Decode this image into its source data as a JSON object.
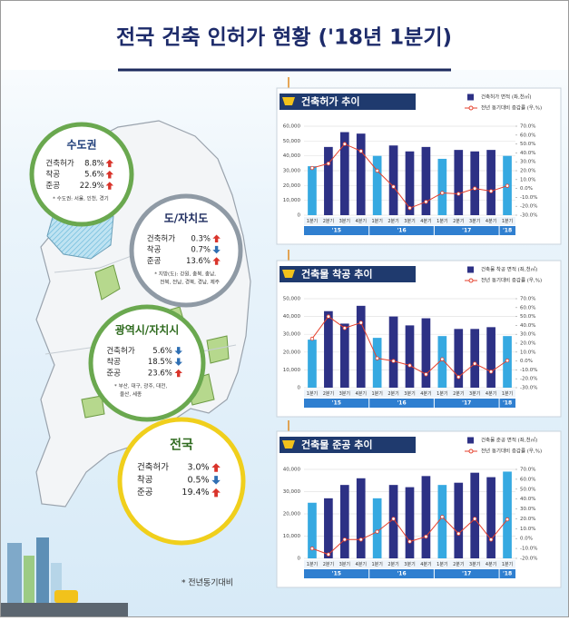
{
  "header": {
    "title": "전국 건축 인허가 현황 ('18년 1분기)"
  },
  "regions": [
    {
      "name": "수도권",
      "rows": [
        {
          "label": "건축허가",
          "value": "8.8%",
          "trend": "up"
        },
        {
          "label": "착공",
          "value": "5.6%",
          "trend": "up"
        },
        {
          "label": "준공",
          "value": "22.9%",
          "trend": "up"
        }
      ],
      "note": [
        "* 수도권: 서울, 인천, 경기"
      ]
    },
    {
      "name": "도/자치도",
      "rows": [
        {
          "label": "건축허가",
          "value": "0.3%",
          "trend": "up"
        },
        {
          "label": "착공",
          "value": "0.7%",
          "trend": "down"
        },
        {
          "label": "준공",
          "value": "13.6%",
          "trend": "up"
        }
      ],
      "note": [
        "* 지방(도): 강원, 충북, 충남,",
        "전북, 전남, 경북, 경남, 제주"
      ]
    },
    {
      "name": "광역시/자치시",
      "rows": [
        {
          "label": "건축허가",
          "value": "5.6%",
          "trend": "down"
        },
        {
          "label": "착공",
          "value": "18.5%",
          "trend": "down"
        },
        {
          "label": "준공",
          "value": "23.6%",
          "trend": "up"
        }
      ],
      "note": [
        "* 부산, 대구, 광주, 대전,",
        "울산, 세종"
      ]
    },
    {
      "name": "전국",
      "rows": [
        {
          "label": "건축허가",
          "value": "3.0%",
          "trend": "up"
        },
        {
          "label": "착공",
          "value": "0.5%",
          "trend": "down"
        },
        {
          "label": "준공",
          "value": "19.4%",
          "trend": "up"
        }
      ],
      "note": []
    }
  ],
  "footnote": "* 전년동기대비",
  "chart_data": [
    {
      "type": "bar",
      "title": "건축허가 추이",
      "categories": [
        "1분기",
        "2분기",
        "3분기",
        "4분기",
        "1분기",
        "2분기",
        "3분기",
        "4분기",
        "1분기",
        "2분기",
        "3분기",
        "4분기",
        "1분기"
      ],
      "groups": [
        "'15",
        "'16",
        "'17",
        "'18"
      ],
      "series": [
        {
          "name": "건축허가 면적 (좌,천㎡)",
          "type": "bar",
          "color": "#2d3185",
          "colors": [
            "#36a9e1",
            "#2d3185",
            "#2d3185",
            "#2d3185",
            "#36a9e1",
            "#2d3185",
            "#2d3185",
            "#2d3185",
            "#36a9e1",
            "#2d3185",
            "#2d3185",
            "#2d3185",
            "#36a9e1"
          ],
          "values": [
            33000,
            46000,
            56000,
            55000,
            40000,
            47000,
            43000,
            46000,
            38000,
            44000,
            43000,
            44000,
            40000
          ]
        },
        {
          "name": "전년 동기대비 증감률 (우,%)",
          "type": "line",
          "axis": "y2",
          "color": "#e5412d",
          "values": [
            23,
            28,
            50,
            42,
            20,
            2,
            -22,
            -15,
            -5,
            -6,
            0,
            -3,
            3
          ]
        }
      ],
      "ylim": [
        0,
        60000
      ],
      "yticks": [
        0,
        {
          "value": 10000,
          "label": "10,000"
        },
        {
          "value": 20000,
          "label": "20,000"
        },
        {
          "value": 30000,
          "label": "30,000"
        },
        {
          "value": 40000,
          "label": "40,000"
        },
        {
          "value": 50000,
          "label": "50,000"
        },
        {
          "value": 60000,
          "label": "60,000"
        }
      ],
      "y2lim": [
        -30,
        70
      ],
      "y2ticks": [
        {
          "value": 70,
          "label": "70.0%"
        },
        {
          "value": 60,
          "label": "60.0%"
        },
        {
          "value": 50,
          "label": "50.0%"
        },
        {
          "value": 40,
          "label": "40.0%"
        },
        {
          "value": 30,
          "label": "30.0%"
        },
        {
          "value": 20,
          "label": "20.0%"
        },
        {
          "value": 10,
          "label": "10.0%"
        },
        {
          "value": 0,
          "label": "0.0%"
        },
        {
          "value": -10,
          "label": "-10.0%"
        },
        {
          "value": -20,
          "label": "-20.0%"
        },
        {
          "value": -30,
          "label": "-30.0%"
        }
      ],
      "grid": true
    },
    {
      "type": "bar",
      "title": "건축물 착공 추이",
      "categories": [
        "1분기",
        "2분기",
        "3분기",
        "4분기",
        "1분기",
        "2분기",
        "3분기",
        "4분기",
        "1분기",
        "2분기",
        "3분기",
        "4분기",
        "1분기"
      ],
      "groups": [
        "'15",
        "'16",
        "'17",
        "'18"
      ],
      "series": [
        {
          "name": "건축물 착공 면적 (좌,천㎡)",
          "type": "bar",
          "color": "#2d3185",
          "colors": [
            "#36a9e1",
            "#2d3185",
            "#2d3185",
            "#2d3185",
            "#36a9e1",
            "#2d3185",
            "#2d3185",
            "#2d3185",
            "#36a9e1",
            "#2d3185",
            "#2d3185",
            "#2d3185",
            "#36a9e1"
          ],
          "values": [
            27000,
            43000,
            36000,
            46000,
            28000,
            40000,
            35000,
            39000,
            29000,
            33000,
            33000,
            34000,
            29000
          ]
        },
        {
          "name": "전년 동기대비 증감률 (우,%)",
          "type": "line",
          "axis": "y2",
          "color": "#e5412d",
          "values": [
            25,
            50,
            37,
            43,
            3,
            0,
            -5,
            -15,
            2,
            -18,
            -3,
            -12,
            0.5
          ]
        }
      ],
      "ylim": [
        0,
        50000
      ],
      "yticks": [
        0,
        {
          "value": 10000,
          "label": "10,000"
        },
        {
          "value": 20000,
          "label": "20,000"
        },
        {
          "value": 30000,
          "label": "30,000"
        },
        {
          "value": 40000,
          "label": "40,000"
        },
        {
          "value": 50000,
          "label": "50,000"
        }
      ],
      "y2lim": [
        -30,
        70
      ],
      "y2ticks": [
        {
          "value": 70,
          "label": "70.0%"
        },
        {
          "value": 60,
          "label": "60.0%"
        },
        {
          "value": 50,
          "label": "50.0%"
        },
        {
          "value": 40,
          "label": "40.0%"
        },
        {
          "value": 30,
          "label": "30.0%"
        },
        {
          "value": 20,
          "label": "20.0%"
        },
        {
          "value": 10,
          "label": "10.0%"
        },
        {
          "value": 0,
          "label": "0.0%"
        },
        {
          "value": -10,
          "label": "-10.0%"
        },
        {
          "value": -20,
          "label": "-20.0%"
        },
        {
          "value": -30,
          "label": "-30.0%"
        }
      ],
      "grid": true
    },
    {
      "type": "bar",
      "title": "건축물 준공 추이",
      "categories": [
        "1분기",
        "2분기",
        "3분기",
        "4분기",
        "1분기",
        "2분기",
        "3분기",
        "4분기",
        "1분기",
        "2분기",
        "3분기",
        "4분기",
        "1분기"
      ],
      "groups": [
        "'15",
        "'16",
        "'17",
        "'18"
      ],
      "series": [
        {
          "name": "건축물 준공 면적 (좌,천㎡)",
          "type": "bar",
          "color": "#2d3185",
          "colors": [
            "#36a9e1",
            "#2d3185",
            "#2d3185",
            "#2d3185",
            "#36a9e1",
            "#2d3185",
            "#2d3185",
            "#2d3185",
            "#36a9e1",
            "#2d3185",
            "#2d3185",
            "#2d3185",
            "#36a9e1"
          ],
          "values": [
            25000,
            27000,
            33000,
            36000,
            27000,
            33000,
            32000,
            37000,
            33000,
            34000,
            38500,
            36500,
            39000
          ]
        },
        {
          "name": "전년 동기대비 증감률 (우,%)",
          "type": "line",
          "axis": "y2",
          "color": "#e5412d",
          "values": [
            -10,
            -16,
            -1,
            -1,
            7,
            20,
            -3,
            2,
            22,
            5,
            20,
            -1,
            19.4
          ]
        }
      ],
      "ylim": [
        0,
        40000
      ],
      "yticks": [
        0,
        {
          "value": 10000,
          "label": "10,000"
        },
        {
          "value": 20000,
          "label": "20,000"
        },
        {
          "value": 30000,
          "label": "30,000"
        },
        {
          "value": 40000,
          "label": "40,000"
        }
      ],
      "y2lim": [
        -20,
        70
      ],
      "y2ticks": [
        {
          "value": 70,
          "label": "70.0%"
        },
        {
          "value": 60,
          "label": "60.0%"
        },
        {
          "value": 50,
          "label": "50.0%"
        },
        {
          "value": 40,
          "label": "40.0%"
        },
        {
          "value": 30,
          "label": "30.0%"
        },
        {
          "value": 20,
          "label": "20.0%"
        },
        {
          "value": 10,
          "label": "10.0%"
        },
        {
          "value": 0,
          "label": "0.0%"
        },
        {
          "value": -10,
          "label": "-10.0%"
        },
        {
          "value": -20,
          "label": "-20.0%"
        }
      ],
      "grid": true
    }
  ]
}
